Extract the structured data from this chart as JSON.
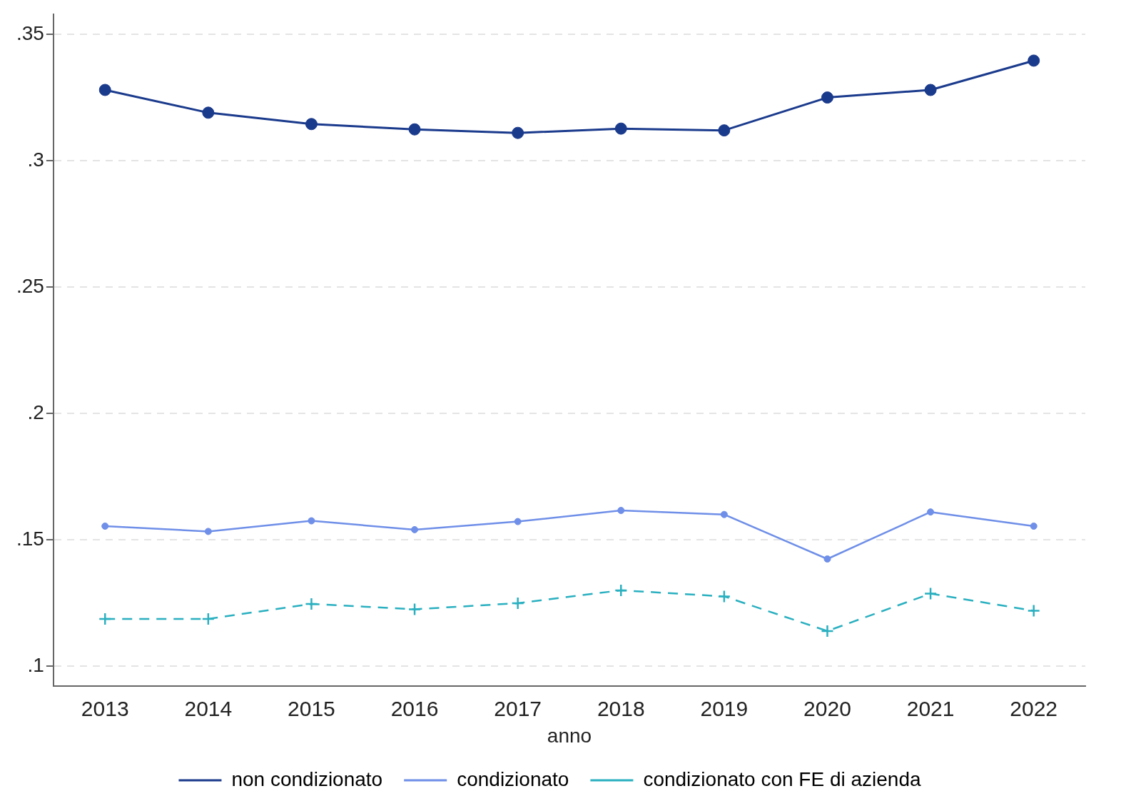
{
  "chart_data": {
    "type": "line",
    "xlabel": "anno",
    "categories": [
      "2013",
      "2014",
      "2015",
      "2016",
      "2017",
      "2018",
      "2019",
      "2020",
      "2021",
      "2022"
    ],
    "series": [
      {
        "name": "non condizionato",
        "color": "#1a3a8c",
        "marker": "circle",
        "line_style": "solid",
        "values": [
          0.328,
          0.319,
          0.3145,
          0.3124,
          0.311,
          0.3127,
          0.312,
          0.325,
          0.328,
          0.3396
        ]
      },
      {
        "name": "condizionato",
        "color": "#6f8fe8",
        "marker": "circle",
        "line_style": "solid",
        "values": [
          0.1554,
          0.1533,
          0.1575,
          0.154,
          0.1572,
          0.1616,
          0.16,
          0.1424,
          0.161,
          0.1554
        ]
      },
      {
        "name": "condizionato con FE di azienda",
        "color": "#2ab0c0",
        "marker": "cross",
        "line_style": "dashed",
        "values": [
          0.1187,
          0.1187,
          0.1246,
          0.1225,
          0.1249,
          0.13,
          0.1276,
          0.1139,
          0.1287,
          0.1219
        ]
      }
    ],
    "ylim": [
      0.092,
      0.358
    ],
    "yticks": [
      {
        "value": 0.1,
        "label": ".1"
      },
      {
        "value": 0.15,
        "label": ".15"
      },
      {
        "value": 0.2,
        "label": ".2"
      },
      {
        "value": 0.25,
        "label": ".25"
      },
      {
        "value": 0.3,
        "label": ".3"
      },
      {
        "value": 0.35,
        "label": ".35"
      }
    ],
    "grid": "y",
    "legend": "bottom"
  }
}
